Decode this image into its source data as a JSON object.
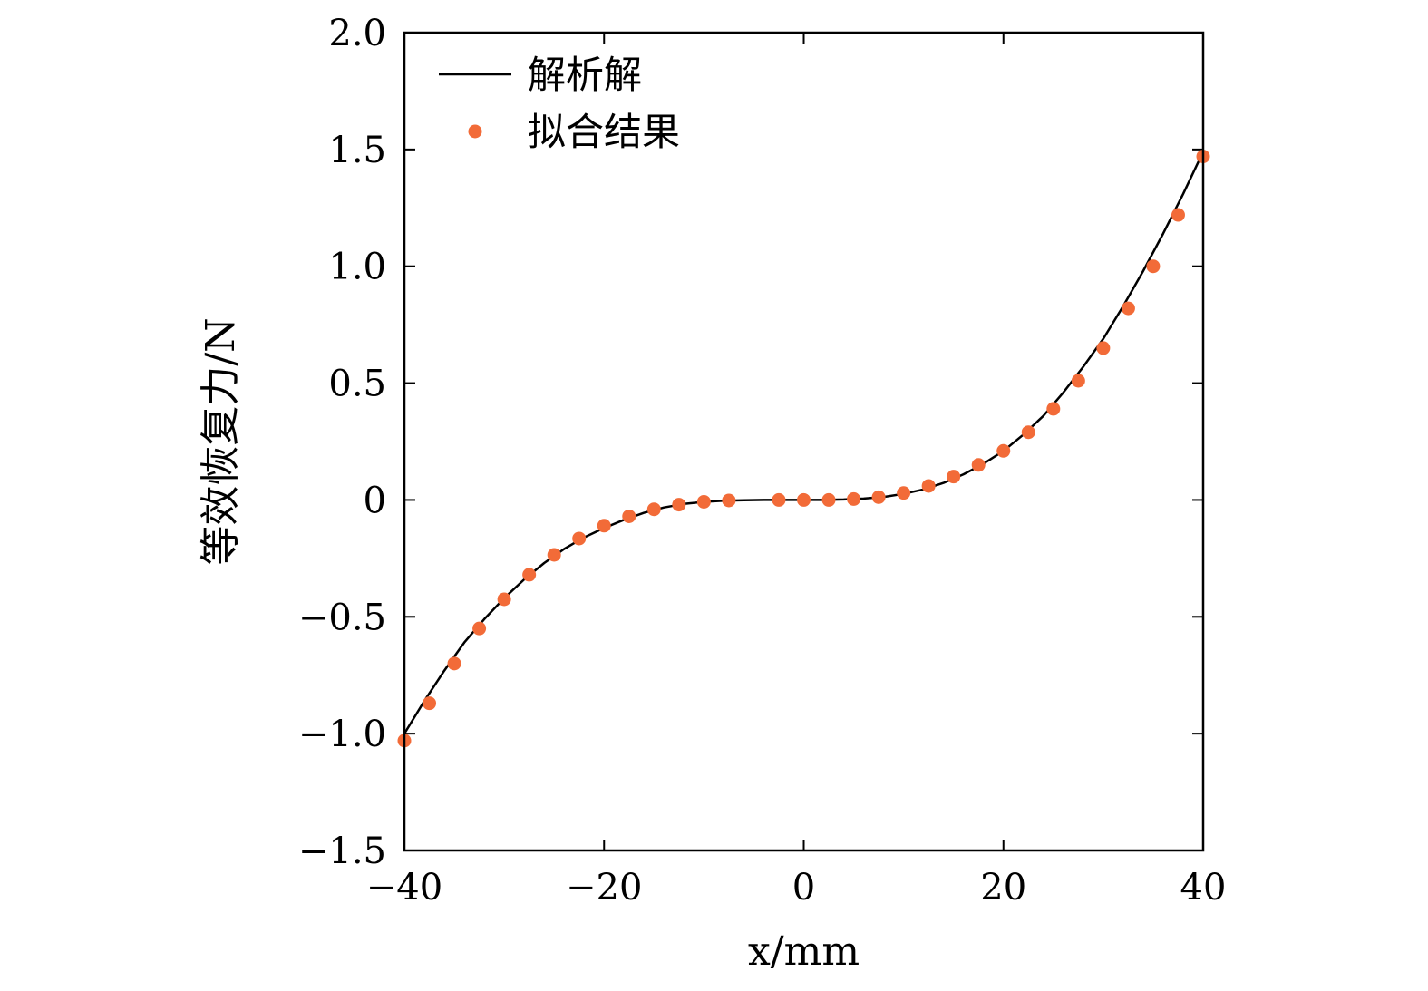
{
  "chart_data": {
    "type": "line",
    "title": "",
    "xlabel": "x/mm",
    "ylabel": "等效恢复力/N",
    "xlim": [
      -40,
      40
    ],
    "ylim": [
      -1.5,
      2.0
    ],
    "xticks": [
      -40,
      -20,
      0,
      20,
      40
    ],
    "xtick_labels": [
      "−40",
      "−20",
      "0",
      "20",
      "40"
    ],
    "yticks": [
      2.0,
      1.5,
      1.0,
      0.5,
      0,
      -0.5,
      -1.0,
      -1.5
    ],
    "ytick_labels": [
      "2.0",
      "1.5",
      "1.0",
      "0.5",
      "0",
      "−0.5",
      "−1.0",
      "−1.5"
    ],
    "grid": false,
    "legend_position": "top-left",
    "series": [
      {
        "name": "解析解",
        "kind": "line",
        "color": "#000000",
        "x": [
          -40,
          -38,
          -36,
          -34,
          -32,
          -30,
          -28,
          -26,
          -24,
          -22,
          -20,
          -18,
          -16,
          -14,
          -12,
          -10,
          -8,
          -6,
          -4,
          -2,
          0,
          2,
          4,
          6,
          8,
          10,
          12,
          14,
          16,
          18,
          20,
          22,
          24,
          26,
          28,
          30,
          32,
          34,
          36,
          38,
          40
        ],
        "y": [
          -1.0,
          -0.86,
          -0.73,
          -0.61,
          -0.51,
          -0.42,
          -0.34,
          -0.27,
          -0.21,
          -0.16,
          -0.12,
          -0.085,
          -0.055,
          -0.032,
          -0.017,
          -0.008,
          -0.003,
          -0.001,
          0,
          0,
          0,
          0,
          0.002,
          0.006,
          0.013,
          0.026,
          0.045,
          0.073,
          0.11,
          0.155,
          0.21,
          0.28,
          0.36,
          0.46,
          0.57,
          0.69,
          0.83,
          0.98,
          1.14,
          1.31,
          1.49
        ]
      },
      {
        "name": "拟合结果",
        "kind": "scatter",
        "color": "#f26b38",
        "x": [
          -40,
          -37.5,
          -35,
          -32.5,
          -30,
          -27.5,
          -25,
          -22.5,
          -20,
          -17.5,
          -15,
          -12.5,
          -10,
          -7.5,
          -2.5,
          0,
          2.5,
          5,
          7.5,
          10,
          12.5,
          15,
          17.5,
          20,
          22.5,
          25,
          27.5,
          30,
          32.5,
          35,
          37.5,
          40
        ],
        "y": [
          -1.03,
          -0.87,
          -0.7,
          -0.55,
          -0.425,
          -0.32,
          -0.235,
          -0.165,
          -0.11,
          -0.07,
          -0.04,
          -0.02,
          -0.008,
          -0.002,
          0,
          0,
          0,
          0.004,
          0.012,
          0.03,
          0.06,
          0.1,
          0.15,
          0.21,
          0.29,
          0.39,
          0.51,
          0.65,
          0.82,
          1.0,
          1.22,
          1.47
        ]
      }
    ]
  }
}
